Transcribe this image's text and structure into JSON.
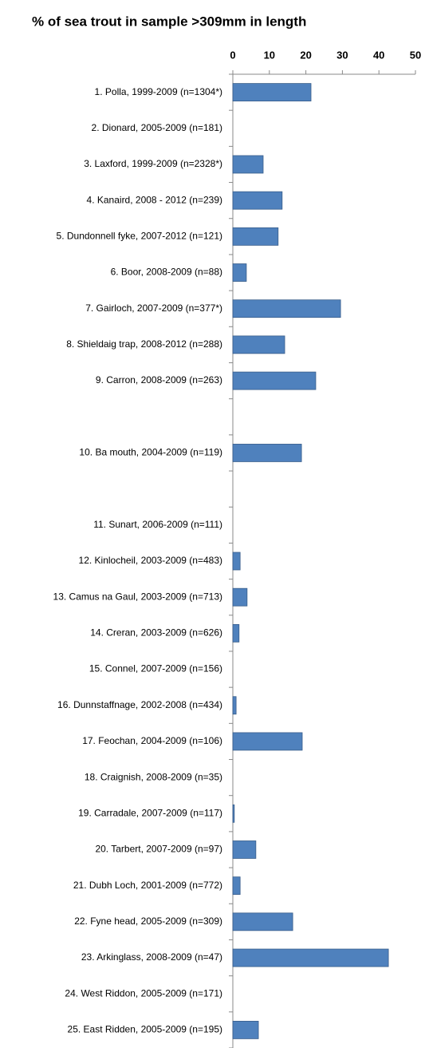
{
  "chart_data": {
    "type": "bar",
    "orientation": "horizontal",
    "title": "% of sea trout in sample >309mm in length",
    "categories": [
      "1. Polla, 1999-2009 (n=1304*)",
      "2. Dionard, 2005-2009 (n=181)",
      "3. Laxford, 1999-2009 (n=2328*)",
      "4. Kanaird, 2008 - 2012 (n=239)",
      "5. Dundonnell fyke, 2007-2012 (n=121)",
      "6. Boor, 2008-2009 (n=88)",
      "7. Gairloch, 2007-2009 (n=377*)",
      "8. Shieldaig trap, 2008-2012 (n=288)",
      "9. Carron, 2008-2009 (n=263)",
      null,
      "10. Ba mouth, 2004-2009 (n=119)",
      null,
      "11. Sunart, 2006-2009 (n=111)",
      "12. Kinlocheil, 2003-2009 (n=483)",
      "13. Camus na Gaul, 2003-2009 (n=713)",
      "14. Creran, 2003-2009 (n=626)",
      "15. Connel, 2007-2009 (n=156)",
      "16. Dunnstaffnage, 2002-2008 (n=434)",
      "17. Feochan, 2004-2009 (n=106)",
      "18. Craignish, 2008-2009 (n=35)",
      "19. Carradale, 2007-2009 (n=117)",
      "20. Tarbert, 2007-2009 (n=97)",
      "21. Dubh Loch, 2001-2009 (n=772)",
      "22. Fyne head, 2005-2009 (n=309)",
      "23. Arkinglass, 2008-2009 (n=47)",
      "24. West Riddon, 2005-2009 (n=171)",
      "25. East Ridden, 2005-2009 (n=195)"
    ],
    "values": [
      21.4,
      0,
      8.3,
      13.5,
      12.4,
      3.7,
      29.5,
      14.2,
      22.7,
      null,
      18.8,
      null,
      0,
      2,
      3.9,
      1.7,
      0,
      0.9,
      19,
      0,
      0.4,
      6.3,
      2,
      16.4,
      42.6,
      0,
      7
    ],
    "color": "#4f81bd",
    "xlim": [
      0,
      50
    ],
    "xticks": [
      0,
      10,
      20,
      30,
      40,
      50
    ]
  }
}
